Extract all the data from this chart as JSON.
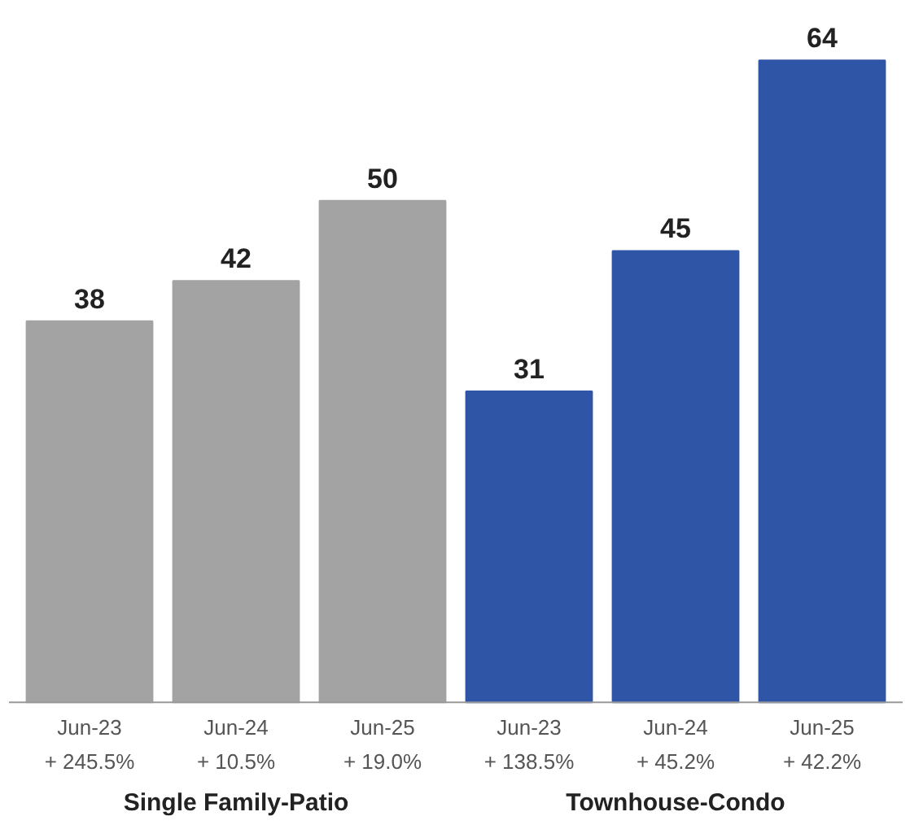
{
  "chart_data": {
    "type": "bar",
    "categories": [
      "Jun-23\n+ 245.5%",
      "Jun-24\n+ 10.5%",
      "Jun-25\n+ 19.0%",
      "Jun-23\n+ 138.5%",
      "Jun-24\n+ 45.2%",
      "Jun-25\n+ 42.2%"
    ],
    "values": [
      38,
      42,
      50,
      31,
      45,
      64
    ],
    "colors": [
      "#a3a3a3",
      "#a3a3a3",
      "#a3a3a3",
      "#2f55a6",
      "#2f55a6",
      "#2f55a6"
    ],
    "data_labels": true,
    "annotations": [
      "Single Family-Patio",
      "Townhouse-Condo"
    ]
  }
}
